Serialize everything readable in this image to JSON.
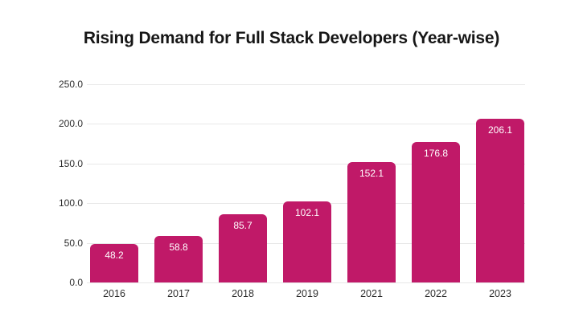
{
  "title": "Rising Demand for Full Stack Developers (Year-wise)",
  "colors": {
    "background": "#ffffff",
    "bar": "#c01968",
    "gridline": "#e8e8e8",
    "title_text": "#161616",
    "tick_text": "#2e2e2e",
    "value_label": "#ffffff"
  },
  "chart_data": {
    "type": "bar",
    "title": "Rising Demand for Full Stack Developers (Year-wise)",
    "categories": [
      "2016",
      "2017",
      "2018",
      "2019",
      "2021",
      "2022",
      "2023"
    ],
    "values": [
      48.2,
      58.8,
      85.7,
      102.1,
      152.1,
      176.8,
      206.1
    ],
    "value_labels": [
      "48.2",
      "58.8",
      "85.7",
      "102.1",
      "152.1",
      "176.8",
      "206.1"
    ],
    "xlabel": "",
    "ylabel": "",
    "ylim": [
      0,
      250
    ],
    "ytick_step": 50,
    "ytick_labels": [
      "0.0",
      "50.0",
      "100.0",
      "150.0",
      "200.0",
      "250.0"
    ],
    "grid": true,
    "legend_position": "none",
    "value_labels_inside_bars": true
  }
}
